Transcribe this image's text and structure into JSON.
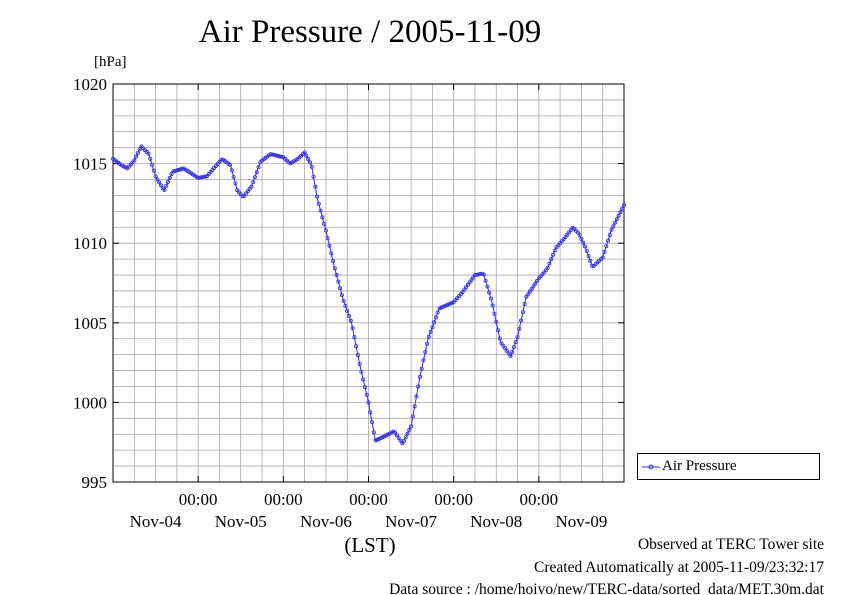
{
  "chart_data": {
    "type": "line",
    "title": "Air Pressure / 2005-11-09",
    "unit_label": "[hPa]",
    "xlabel": "(LST)",
    "ylim": [
      995,
      1020
    ],
    "y_ticks": [
      "995",
      "1000",
      "1005",
      "1010",
      "1015",
      "1020"
    ],
    "x_range_days": [
      0,
      6
    ],
    "x_ticks": [
      {
        "time": "00:00",
        "date": "Nov-04"
      },
      {
        "time": "00:00",
        "date": "Nov-05"
      },
      {
        "time": "00:00",
        "date": "Nov-06"
      },
      {
        "time": "00:00",
        "date": "Nov-07"
      },
      {
        "time": "00:00",
        "date": "Nov-08"
      },
      {
        "time": "00:00",
        "date": "Nov-09"
      }
    ],
    "grid": true,
    "legend_position": "right-bottom",
    "series": [
      {
        "name": "Air Pressure",
        "color": "#3333ee",
        "points": [
          [
            0.0,
            1015.3
          ],
          [
            0.1,
            1014.9
          ],
          [
            0.17,
            1014.7
          ],
          [
            0.25,
            1015.2
          ],
          [
            0.33,
            1016.1
          ],
          [
            0.42,
            1015.6
          ],
          [
            0.5,
            1014.2
          ],
          [
            0.6,
            1013.3
          ],
          [
            0.7,
            1014.5
          ],
          [
            0.83,
            1014.7
          ],
          [
            1.0,
            1014.1
          ],
          [
            1.1,
            1014.2
          ],
          [
            1.2,
            1014.8
          ],
          [
            1.28,
            1015.3
          ],
          [
            1.38,
            1014.9
          ],
          [
            1.46,
            1013.3
          ],
          [
            1.53,
            1012.9
          ],
          [
            1.63,
            1013.6
          ],
          [
            1.73,
            1015.1
          ],
          [
            1.85,
            1015.6
          ],
          [
            2.0,
            1015.4
          ],
          [
            2.08,
            1015.0
          ],
          [
            2.17,
            1015.3
          ],
          [
            2.25,
            1015.7
          ],
          [
            2.33,
            1014.9
          ],
          [
            2.4,
            1012.8
          ],
          [
            2.5,
            1010.8
          ],
          [
            2.6,
            1008.5
          ],
          [
            2.7,
            1006.5
          ],
          [
            2.8,
            1005.0
          ],
          [
            2.9,
            1002.3
          ],
          [
            3.0,
            1000.0
          ],
          [
            3.08,
            997.6
          ],
          [
            3.2,
            997.9
          ],
          [
            3.3,
            998.2
          ],
          [
            3.4,
            997.4
          ],
          [
            3.5,
            998.5
          ],
          [
            3.6,
            1001.5
          ],
          [
            3.7,
            1004.0
          ],
          [
            3.83,
            1005.9
          ],
          [
            4.0,
            1006.3
          ],
          [
            4.1,
            1006.9
          ],
          [
            4.25,
            1008.0
          ],
          [
            4.35,
            1008.1
          ],
          [
            4.45,
            1006.3
          ],
          [
            4.55,
            1003.8
          ],
          [
            4.67,
            1002.9
          ],
          [
            4.75,
            1004.1
          ],
          [
            4.85,
            1006.6
          ],
          [
            5.0,
            1007.8
          ],
          [
            5.1,
            1008.4
          ],
          [
            5.2,
            1009.7
          ],
          [
            5.3,
            1010.3
          ],
          [
            5.4,
            1011.0
          ],
          [
            5.47,
            1010.6
          ],
          [
            5.55,
            1009.7
          ],
          [
            5.63,
            1008.5
          ],
          [
            5.75,
            1009.1
          ],
          [
            5.85,
            1010.8
          ],
          [
            6.0,
            1012.4
          ]
        ]
      }
    ]
  },
  "footer": {
    "observed": "Observed at TERC Tower site",
    "created": "Created Automatically at 2005-11-09/23:32:17",
    "source": "Data source : /home/hoivo/new/TERC-data/sorted_data/MET.30m.dat"
  }
}
